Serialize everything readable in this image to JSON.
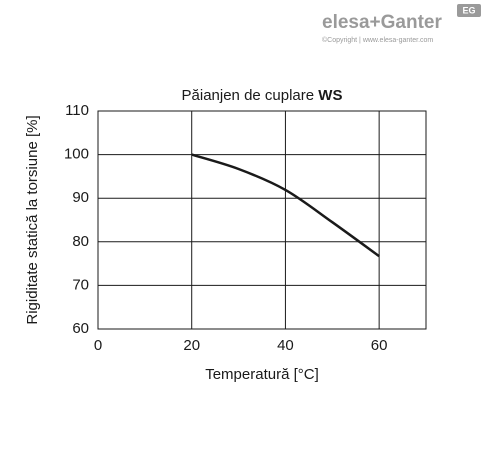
{
  "brand": {
    "name": "elesa+Ganter",
    "badge": "EG",
    "copyright": "©Copyright | www.elesa-ganter.com"
  },
  "chart_data": {
    "type": "line",
    "title": "Păianjen de cuplare",
    "title_bold": "WS",
    "x_label": "Temperatură [°C]",
    "y_label": "Rigiditate statică la torsiune [%]",
    "x": [
      20,
      30,
      40,
      50,
      60
    ],
    "series": [
      {
        "color": "#1a1a1a",
        "values": [
          100,
          96.7,
          91.9,
          84.5,
          76.7
        ]
      }
    ],
    "xlim": [
      0,
      70
    ],
    "xticks": [
      0,
      20,
      40,
      60
    ],
    "ylim": [
      60,
      110
    ],
    "yticks": [
      60,
      70,
      80,
      90,
      100,
      110
    ],
    "grid": true
  }
}
